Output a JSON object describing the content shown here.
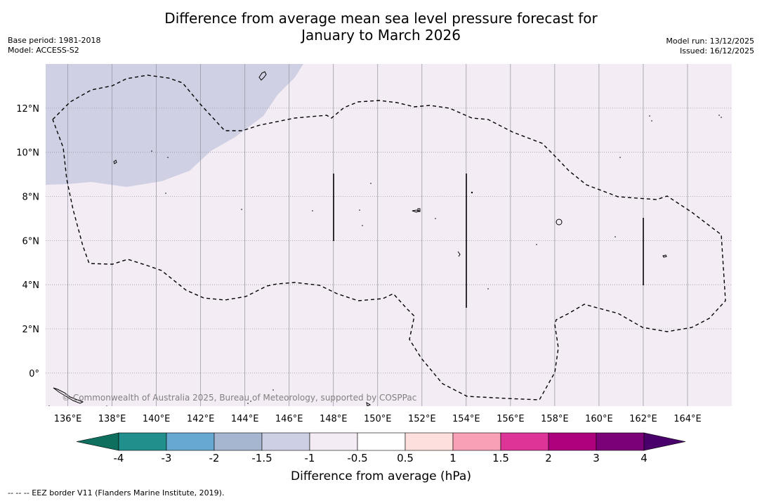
{
  "title": {
    "line1": "Difference from average mean sea level pressure forecast for",
    "line2": "January to March 2026"
  },
  "meta_left": {
    "base_period": "Base period: 1981-2018",
    "model": "Model: ACCESS-S2"
  },
  "meta_right": {
    "model_run": "Model run: 13/12/2025",
    "issued": "Issued: 16/12/2025"
  },
  "map": {
    "lon_range": [
      135,
      166
    ],
    "lat_range": [
      -1.5,
      14
    ],
    "lon_ticks": [
      "136°E",
      "138°E",
      "140°E",
      "142°E",
      "144°E",
      "146°E",
      "148°E",
      "150°E",
      "152°E",
      "154°E",
      "156°E",
      "158°E",
      "160°E",
      "162°E",
      "164°E"
    ],
    "lat_ticks": [
      "12°N",
      "10°N",
      "8°N",
      "6°N",
      "4°N",
      "2°N",
      "0°"
    ],
    "copyright": "© Commonwealth of Australia 2025, Bureau of Meteorology, supported by COSPPac",
    "colors": {
      "background_category": "#f4ecf4",
      "negative_category": "#cfd0e3",
      "eez_line": "#000000"
    }
  },
  "colorbar": {
    "ticks": [
      "-4",
      "-3",
      "-2",
      "-1.5",
      "-1",
      "-0.5",
      "0.5",
      "1",
      "1.5",
      "2",
      "3",
      "4"
    ],
    "colors": [
      "#0f6f5f",
      "#21908c",
      "#67a8d0",
      "#a6b6d0",
      "#cdcfe4",
      "#f4ecf4",
      "#ffffff",
      "#fde0dd",
      "#f8a0b4",
      "#dd3497",
      "#ae017e",
      "#7a0177",
      "#49006a"
    ],
    "title": "Difference from average (hPa)"
  },
  "footnote": "-- -- -- EEZ border V11 (Flanders Marine Institute, 2019)."
}
